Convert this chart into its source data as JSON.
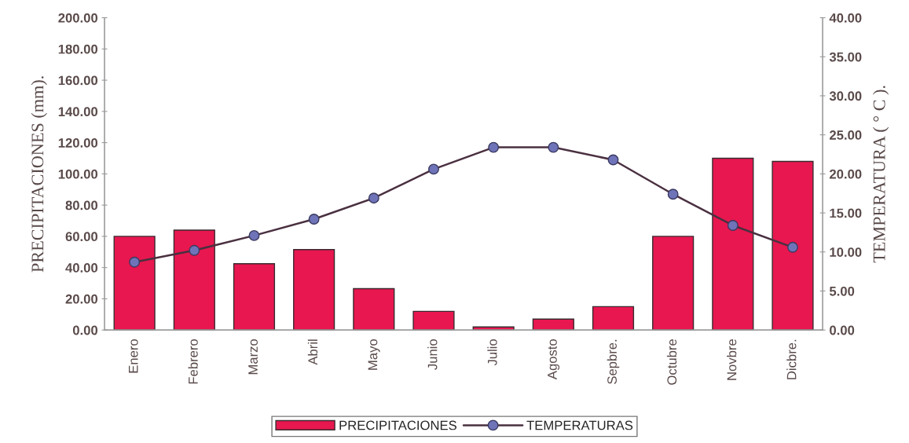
{
  "chart_data": {
    "type": "bar",
    "categories": [
      "Enero",
      "Febrero",
      "Marzo",
      "Abril",
      "Mayo",
      "Junio",
      "Julio",
      "Agosto",
      "Sepbre.",
      "Octubre",
      "Novbre",
      "Dicbre."
    ],
    "ylabel": "PRECIPITACIONES (mm).",
    "y2label": "TEMPERATURA ( ° C ).",
    "series": [
      {
        "name": "PRECIPITACIONES",
        "color": "#e8174f",
        "values": [
          60,
          64,
          42.5,
          51.5,
          26.5,
          12,
          2,
          7,
          15,
          60,
          110,
          108
        ]
      },
      {
        "name": "TEMPERATURAS",
        "type": "line",
        "axis": "y2",
        "color": "#4a3040",
        "marker": "circle",
        "values": [
          8.7,
          10.2,
          12.1,
          14.2,
          16.9,
          20.6,
          23.4,
          23.4,
          21.8,
          17.4,
          13.4,
          10.6
        ]
      }
    ],
    "ylim": [
      0,
      200
    ],
    "yticks": [
      {
        "value": 0,
        "label": "0.00"
      },
      {
        "value": 20,
        "label": "20.00"
      },
      {
        "value": 40,
        "label": "40.00"
      },
      {
        "value": 60,
        "label": "60.00"
      },
      {
        "value": 80,
        "label": "80.00"
      },
      {
        "value": 100,
        "label": "100.00"
      },
      {
        "value": 120,
        "label": "120.00"
      },
      {
        "value": 140,
        "label": "140.00"
      },
      {
        "value": 160,
        "label": "160.00"
      },
      {
        "value": 180,
        "label": "180.00"
      },
      {
        "value": 200,
        "label": "200.00"
      }
    ],
    "y2lim": [
      0,
      40
    ],
    "y2ticks": [
      {
        "value": 0,
        "label": "0.00"
      },
      {
        "value": 5,
        "label": "5.00"
      },
      {
        "value": 10,
        "label": "10.00"
      },
      {
        "value": 15,
        "label": "15.00"
      },
      {
        "value": 20,
        "label": "20.00"
      },
      {
        "value": 25,
        "label": "25.00"
      },
      {
        "value": 30,
        "label": "30.00"
      },
      {
        "value": 35,
        "label": "35.00"
      },
      {
        "value": 40,
        "label": "40.00"
      }
    ],
    "grid": false,
    "legend": "bottom"
  }
}
